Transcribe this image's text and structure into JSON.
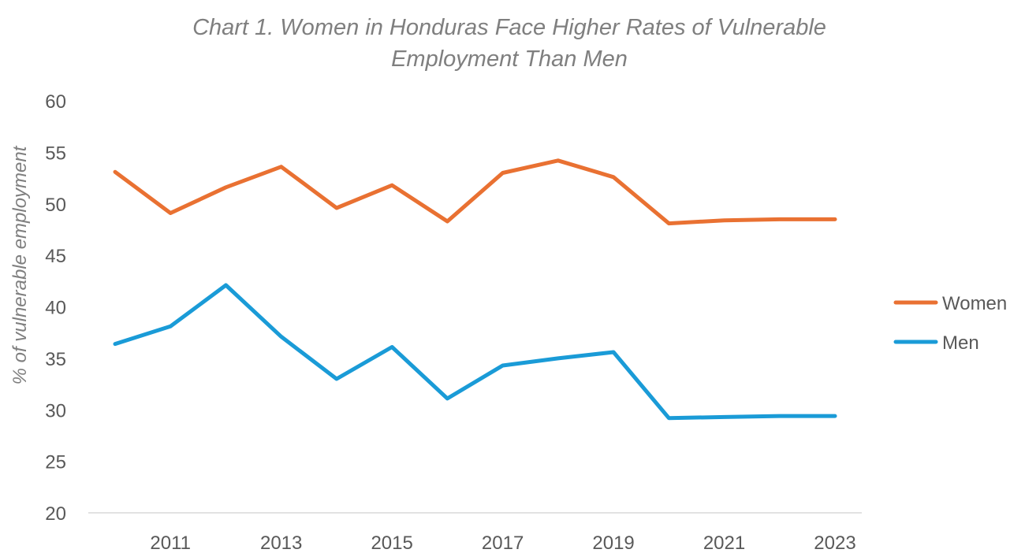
{
  "chart_data": {
    "type": "line",
    "title_lines": [
      "Chart 1. Women in Honduras Face Higher Rates of Vulnerable",
      "Employment Than Men"
    ],
    "ylabel": "% of vulnerable employment",
    "xlabel": "",
    "x": [
      2010,
      2011,
      2012,
      2013,
      2014,
      2015,
      2016,
      2017,
      2018,
      2019,
      2020,
      2021,
      2022,
      2023
    ],
    "x_tick_labels": [
      "2011",
      "2013",
      "2015",
      "2017",
      "2019",
      "2021",
      "2023"
    ],
    "y_tick_labels": [
      "20",
      "25",
      "30",
      "35",
      "40",
      "45",
      "50",
      "55",
      "60"
    ],
    "ylim": [
      20,
      60
    ],
    "grid": false,
    "legend_position": "right",
    "series": [
      {
        "name": "Women",
        "color": "#E97132",
        "values": [
          53.1,
          49.1,
          51.6,
          53.6,
          49.6,
          51.8,
          48.3,
          53.0,
          54.2,
          52.6,
          48.1,
          48.4,
          48.5,
          48.5
        ]
      },
      {
        "name": "Men",
        "color": "#1A9BD7",
        "values": [
          36.4,
          38.1,
          42.1,
          37.1,
          33.0,
          36.1,
          31.1,
          34.3,
          35.0,
          35.6,
          29.2,
          29.3,
          29.4,
          29.4
        ]
      }
    ]
  }
}
